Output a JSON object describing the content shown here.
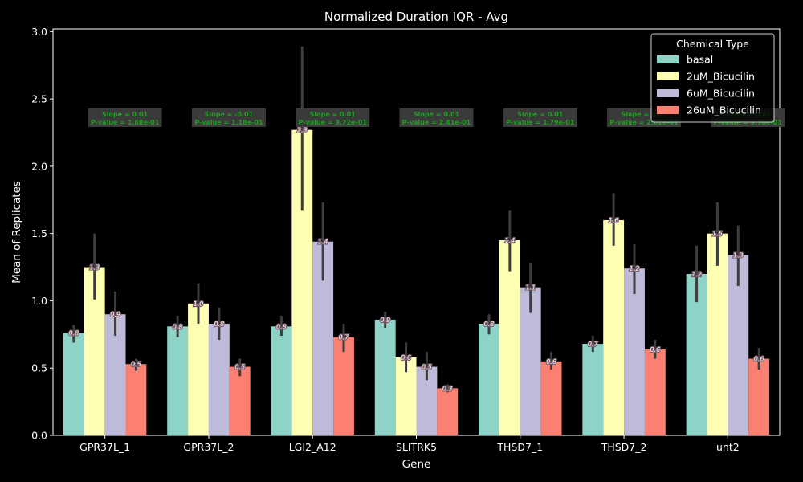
{
  "chart_data": {
    "type": "bar",
    "title": "Normalized Duration IQR - Avg",
    "xlabel": "Gene",
    "ylabel": "Mean of Replicates",
    "ylim": [
      0,
      3.02
    ],
    "yticks": [
      "0.0",
      "0.5",
      "1.0",
      "1.5",
      "2.0",
      "2.5",
      "3.0"
    ],
    "categories": [
      "GPR37L_1",
      "GPR37L_2",
      "LGI2_A12",
      "SLITRK5",
      "THSD7_1",
      "THSD7_2",
      "unt2"
    ],
    "legend": {
      "title": "Chemical Type",
      "position": "top-right"
    },
    "series": [
      {
        "name": "basal",
        "color": "#8dd3c7",
        "values": [
          0.76,
          0.81,
          0.81,
          0.86,
          0.83,
          0.68,
          1.2
        ],
        "err_low": [
          0.69,
          0.73,
          0.74,
          0.8,
          0.75,
          0.62,
          0.99
        ],
        "err_high": [
          0.82,
          0.89,
          0.89,
          0.92,
          0.9,
          0.74,
          1.41
        ],
        "labels": [
          "0.8",
          "0.8",
          "0.8",
          "0.9",
          "0.8",
          "0.7",
          "1.2"
        ]
      },
      {
        "name": "2uM_Bicucilin",
        "color": "#ffffb3",
        "values": [
          1.25,
          0.98,
          2.27,
          0.58,
          1.45,
          1.6,
          1.5
        ],
        "err_low": [
          1.01,
          0.83,
          1.67,
          0.47,
          1.22,
          1.41,
          1.26
        ],
        "err_high": [
          1.5,
          1.13,
          2.89,
          0.69,
          1.67,
          1.8,
          1.73
        ],
        "labels": [
          "1.3",
          "1.0",
          "2.3",
          "0.6",
          "1.4",
          "1.6",
          "1.5"
        ]
      },
      {
        "name": "6uM_Bicucilin",
        "color": "#bebada",
        "values": [
          0.9,
          0.83,
          1.44,
          0.51,
          1.1,
          1.24,
          1.34
        ],
        "err_low": [
          0.74,
          0.71,
          1.15,
          0.41,
          0.91,
          1.05,
          1.11
        ],
        "err_high": [
          1.07,
          0.95,
          1.73,
          0.62,
          1.28,
          1.42,
          1.56
        ],
        "labels": [
          "0.9",
          "0.8",
          "1.4",
          "0.5",
          "1.1",
          "1.2",
          "1.3"
        ]
      },
      {
        "name": "26uM_Bicucilin",
        "color": "#fb8072",
        "values": [
          0.53,
          0.51,
          0.73,
          0.35,
          0.55,
          0.64,
          0.57
        ],
        "err_low": [
          0.48,
          0.44,
          0.62,
          0.32,
          0.49,
          0.57,
          0.49
        ],
        "err_high": [
          0.57,
          0.57,
          0.83,
          0.38,
          0.62,
          0.71,
          0.65
        ],
        "labels": [
          "0.5",
          "0.5",
          "0.7",
          "0.3",
          "0.6",
          "0.6",
          "0.6"
        ]
      }
    ],
    "annotations": [
      [
        "Slope = 0.01",
        "P-value = 1.88e-01"
      ],
      [
        "Slope = -0.01",
        "P-value = 1.18e-01"
      ],
      [
        "Slope = 0.01",
        "P-value = 3.72e-01"
      ],
      [
        "Slope = 0.01",
        "P-value = 2.41e-01"
      ],
      [
        "Slope = 0.01",
        "P-value = 1.79e-01"
      ],
      [
        "Slope = 0.01",
        "P-value = 2.02e-01"
      ],
      [
        "Slope = 0.01",
        "P-value = 3.96e-01"
      ]
    ],
    "grid": false
  }
}
